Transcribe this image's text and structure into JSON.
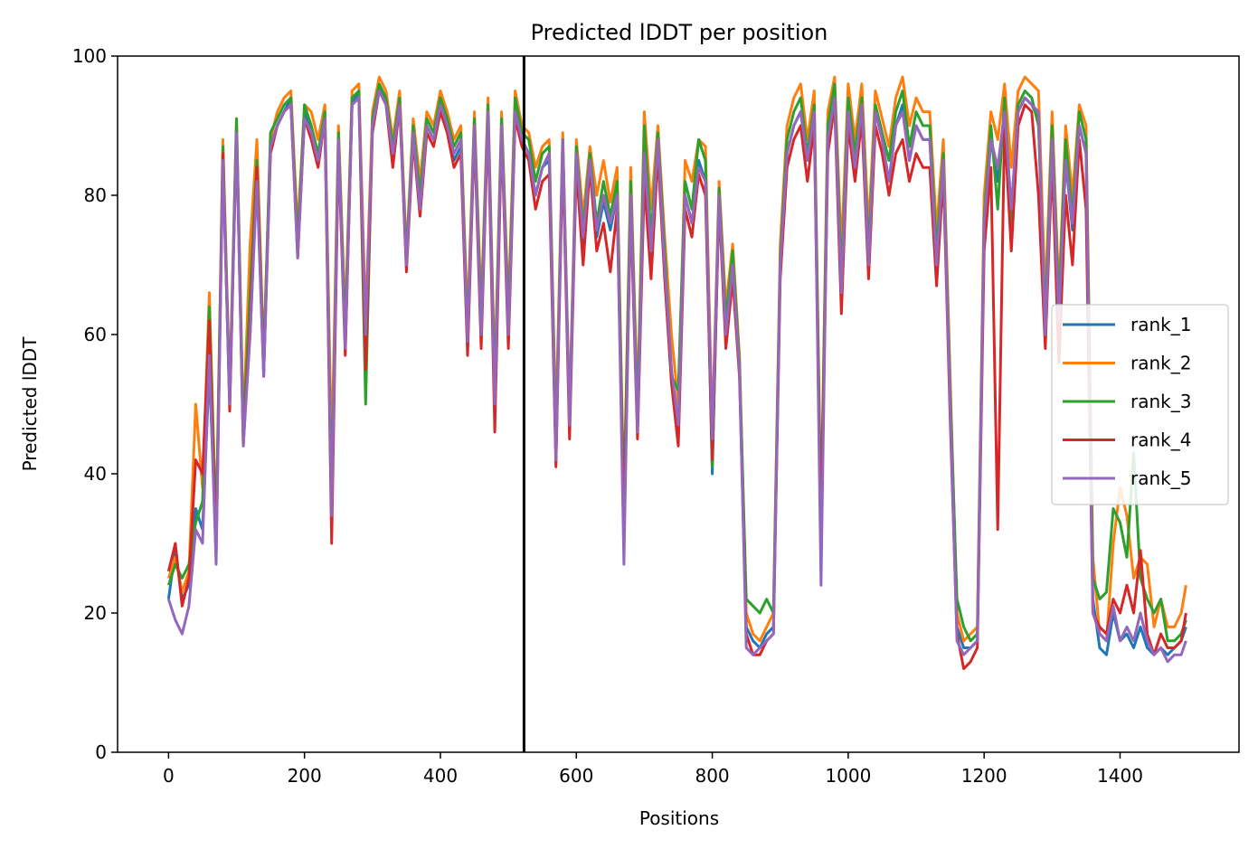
{
  "chart_data": {
    "type": "line",
    "title": "Predicted lDDT per position",
    "xlabel": "Positions",
    "ylabel": "Predicted lDDT",
    "xlim": [
      -75,
      1575
    ],
    "ylim": [
      0,
      100
    ],
    "xticks": [
      0,
      200,
      400,
      600,
      800,
      1000,
      1200,
      1400
    ],
    "yticks": [
      0,
      20,
      40,
      60,
      80,
      100
    ],
    "grid": false,
    "legend_position": "center-right",
    "vline_x": 523,
    "vline_color": "#000000",
    "x": [
      0,
      10,
      20,
      30,
      40,
      50,
      60,
      70,
      80,
      90,
      100,
      110,
      120,
      130,
      140,
      150,
      160,
      170,
      180,
      190,
      200,
      210,
      220,
      230,
      240,
      250,
      260,
      270,
      280,
      290,
      300,
      310,
      320,
      330,
      340,
      350,
      360,
      370,
      380,
      390,
      400,
      410,
      420,
      430,
      440,
      450,
      460,
      470,
      480,
      490,
      500,
      510,
      520,
      530,
      540,
      550,
      560,
      570,
      580,
      590,
      600,
      610,
      620,
      630,
      640,
      650,
      660,
      670,
      680,
      690,
      700,
      710,
      720,
      730,
      740,
      750,
      760,
      770,
      780,
      790,
      800,
      810,
      820,
      830,
      840,
      850,
      860,
      870,
      880,
      890,
      900,
      910,
      920,
      930,
      940,
      950,
      960,
      970,
      980,
      990,
      1000,
      1010,
      1020,
      1030,
      1040,
      1050,
      1060,
      1070,
      1080,
      1090,
      1100,
      1110,
      1120,
      1130,
      1140,
      1150,
      1160,
      1170,
      1180,
      1190,
      1200,
      1210,
      1220,
      1230,
      1240,
      1250,
      1260,
      1270,
      1280,
      1290,
      1300,
      1310,
      1320,
      1330,
      1340,
      1350,
      1360,
      1370,
      1380,
      1390,
      1400,
      1410,
      1420,
      1430,
      1440,
      1450,
      1460,
      1470,
      1480,
      1490,
      1497
    ],
    "series": [
      {
        "name": "rank_1",
        "color": "#1f77b4",
        "values": [
          22,
          29,
          22,
          24,
          35,
          32,
          55,
          30,
          86,
          50,
          90,
          45,
          60,
          83,
          55,
          87,
          90,
          92,
          94,
          72,
          92,
          89,
          85,
          92,
          33,
          88,
          58,
          93,
          95,
          58,
          90,
          96,
          93,
          85,
          94,
          70,
          89,
          78,
          90,
          88,
          93,
          90,
          85,
          87,
          58,
          90,
          60,
          92,
          50,
          90,
          60,
          92,
          88,
          86,
          80,
          84,
          85,
          42,
          88,
          47,
          86,
          73,
          85,
          74,
          79,
          75,
          80,
          34,
          80,
          46,
          85,
          70,
          88,
          70,
          55,
          45,
          80,
          76,
          85,
          82,
          40,
          80,
          60,
          70,
          55,
          18,
          16,
          15,
          17,
          18,
          70,
          86,
          90,
          92,
          85,
          92,
          32,
          88,
          95,
          65,
          92,
          84,
          93,
          70,
          92,
          88,
          82,
          90,
          93,
          85,
          90,
          88,
          88,
          70,
          85,
          50,
          18,
          15,
          15,
          16,
          75,
          88,
          82,
          92,
          78,
          92,
          94,
          93,
          91,
          60,
          88,
          62,
          85,
          75,
          90,
          86,
          22,
          15,
          14,
          20,
          16,
          17,
          15,
          18,
          15,
          14,
          15,
          14,
          15,
          16,
          18
        ]
      },
      {
        "name": "rank_2",
        "color": "#ff7f0e",
        "values": [
          25,
          28,
          23,
          26,
          50,
          38,
          66,
          32,
          88,
          52,
          91,
          47,
          73,
          88,
          57,
          88,
          92,
          94,
          95,
          75,
          93,
          92,
          88,
          93,
          42,
          90,
          62,
          95,
          96,
          62,
          92,
          97,
          95,
          88,
          95,
          72,
          91,
          82,
          92,
          90,
          95,
          92,
          88,
          90,
          62,
          92,
          64,
          94,
          54,
          92,
          64,
          95,
          90,
          89,
          84,
          87,
          88,
          47,
          89,
          49,
          88,
          77,
          87,
          80,
          85,
          79,
          84,
          36,
          84,
          50,
          92,
          78,
          90,
          74,
          60,
          50,
          85,
          82,
          88,
          87,
          46,
          82,
          64,
          73,
          57,
          20,
          17,
          16,
          18,
          20,
          73,
          90,
          94,
          96,
          88,
          95,
          34,
          92,
          97,
          72,
          96,
          88,
          96,
          75,
          95,
          91,
          87,
          94,
          97,
          90,
          94,
          92,
          92,
          75,
          88,
          54,
          20,
          16,
          17,
          18,
          80,
          92,
          88,
          96,
          84,
          95,
          97,
          96,
          95,
          65,
          92,
          66,
          90,
          80,
          93,
          90,
          28,
          17,
          16,
          30,
          38,
          34,
          25,
          28,
          27,
          18,
          22,
          18,
          18,
          20,
          24
        ]
      },
      {
        "name": "rank_3",
        "color": "#2ca02c",
        "values": [
          24,
          27,
          25,
          27,
          33,
          36,
          64,
          31,
          87,
          51,
          91,
          46,
          66,
          85,
          56,
          89,
          91,
          93,
          94,
          73,
          93,
          90,
          86,
          92,
          36,
          89,
          60,
          94,
          95,
          50,
          91,
          96,
          94,
          87,
          94,
          71,
          90,
          80,
          91,
          89,
          94,
          91,
          87,
          89,
          60,
          91,
          62,
          93,
          52,
          91,
          62,
          94,
          89,
          88,
          82,
          86,
          87,
          44,
          88,
          48,
          87,
          75,
          86,
          76,
          82,
          77,
          82,
          35,
          82,
          48,
          90,
          74,
          89,
          72,
          54,
          52,
          82,
          78,
          88,
          85,
          41,
          81,
          62,
          72,
          56,
          22,
          21,
          20,
          22,
          20,
          71,
          88,
          92,
          94,
          86,
          93,
          33,
          90,
          96,
          68,
          94,
          86,
          94,
          72,
          93,
          89,
          85,
          92,
          95,
          87,
          92,
          90,
          90,
          72,
          86,
          52,
          22,
          18,
          16,
          17,
          77,
          90,
          78,
          94,
          76,
          93,
          95,
          94,
          90,
          62,
          90,
          64,
          88,
          77,
          92,
          88,
          25,
          22,
          23,
          35,
          33,
          28,
          43,
          25,
          22,
          20,
          22,
          16,
          16,
          17,
          19
        ]
      },
      {
        "name": "rank_4",
        "color": "#d62728",
        "values": [
          26,
          30,
          21,
          25,
          42,
          40,
          62,
          28,
          86,
          49,
          89,
          44,
          62,
          84,
          54,
          86,
          90,
          92,
          93,
          71,
          91,
          88,
          84,
          91,
          30,
          87,
          57,
          93,
          94,
          55,
          89,
          95,
          93,
          84,
          93,
          69,
          88,
          77,
          89,
          87,
          92,
          89,
          84,
          86,
          57,
          89,
          58,
          91,
          46,
          89,
          58,
          91,
          87,
          85,
          78,
          82,
          83,
          41,
          86,
          45,
          84,
          70,
          84,
          72,
          76,
          69,
          78,
          32,
          78,
          45,
          82,
          68,
          86,
          68,
          53,
          44,
          78,
          74,
          83,
          80,
          42,
          79,
          58,
          68,
          54,
          17,
          14,
          14,
          16,
          17,
          68,
          84,
          88,
          90,
          82,
          90,
          30,
          86,
          93,
          63,
          90,
          82,
          91,
          68,
          90,
          86,
          80,
          86,
          88,
          82,
          86,
          84,
          84,
          67,
          83,
          48,
          17,
          12,
          13,
          15,
          72,
          84,
          32,
          90,
          72,
          90,
          93,
          92,
          80,
          58,
          85,
          56,
          80,
          70,
          88,
          78,
          20,
          18,
          17,
          22,
          20,
          24,
          20,
          29,
          17,
          14,
          17,
          15,
          15,
          16,
          20
        ]
      },
      {
        "name": "rank_5",
        "color": "#9467bd",
        "values": [
          22,
          19,
          17,
          21,
          32,
          30,
          57,
          27,
          85,
          50,
          89,
          44,
          60,
          82,
          54,
          87,
          90,
          92,
          93,
          71,
          91,
          89,
          85,
          91,
          34,
          88,
          58,
          93,
          94,
          60,
          90,
          95,
          93,
          86,
          93,
          70,
          89,
          78,
          90,
          88,
          93,
          90,
          86,
          88,
          59,
          90,
          60,
          92,
          50,
          90,
          60,
          92,
          88,
          86,
          80,
          84,
          86,
          42,
          88,
          47,
          86,
          74,
          85,
          75,
          80,
          76,
          80,
          27,
          80,
          46,
          86,
          72,
          88,
          70,
          55,
          47,
          80,
          76,
          84,
          82,
          45,
          80,
          60,
          70,
          55,
          15,
          14,
          15,
          16,
          17,
          70,
          86,
          90,
          92,
          85,
          92,
          24,
          88,
          94,
          66,
          92,
          84,
          93,
          70,
          92,
          88,
          82,
          90,
          92,
          85,
          90,
          88,
          88,
          70,
          85,
          50,
          16,
          14,
          15,
          16,
          76,
          88,
          84,
          92,
          78,
          92,
          94,
          93,
          92,
          60,
          88,
          62,
          85,
          76,
          90,
          86,
          20,
          17,
          16,
          21,
          16,
          18,
          16,
          20,
          16,
          14,
          15,
          13,
          14,
          14,
          16
        ]
      }
    ]
  }
}
